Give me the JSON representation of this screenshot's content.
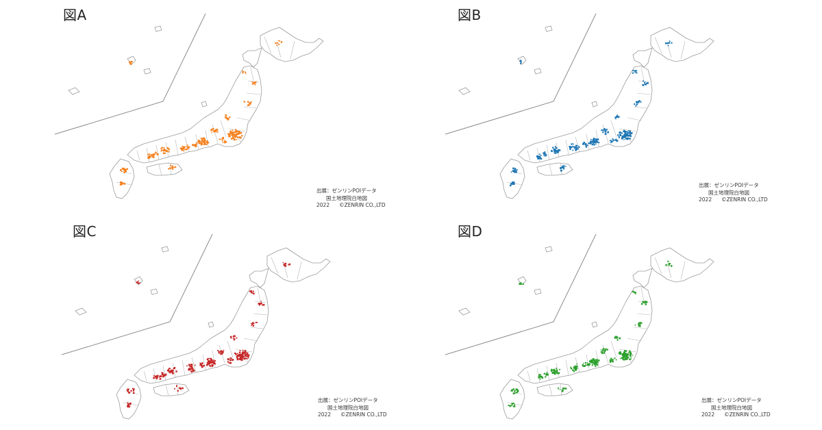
{
  "panels": [
    {
      "title": "図A",
      "color": "#F58220",
      "credit": {
        "source": "出展：ゼンリンPOIデータ",
        "basemap": "国土地理院白地図",
        "year": "2022",
        "copyright": "©ZENRIN CO.,LTD"
      }
    },
    {
      "title": "図B",
      "color": "#1F77B4",
      "credit": {
        "source": "出展：ゼンリンPOIデータ",
        "basemap": "国土地理院白地図",
        "year": "2022",
        "copyright": "©ZENRIN CO.,LTD"
      }
    },
    {
      "title": "図C",
      "color": "#C62828",
      "credit": {
        "source": "出展：ゼンリンPOIデータ",
        "basemap": "国土地理院白地図",
        "year": "2022",
        "copyright": "©ZENRIN CO.,LTD"
      }
    },
    {
      "title": "図D",
      "color": "#2CA02C",
      "credit": {
        "source": "出展：ゼンリンPOIデータ",
        "basemap": "国土地理院白地図",
        "year": "2022",
        "copyright": "©ZENRIN CO.,LTD"
      }
    }
  ]
}
